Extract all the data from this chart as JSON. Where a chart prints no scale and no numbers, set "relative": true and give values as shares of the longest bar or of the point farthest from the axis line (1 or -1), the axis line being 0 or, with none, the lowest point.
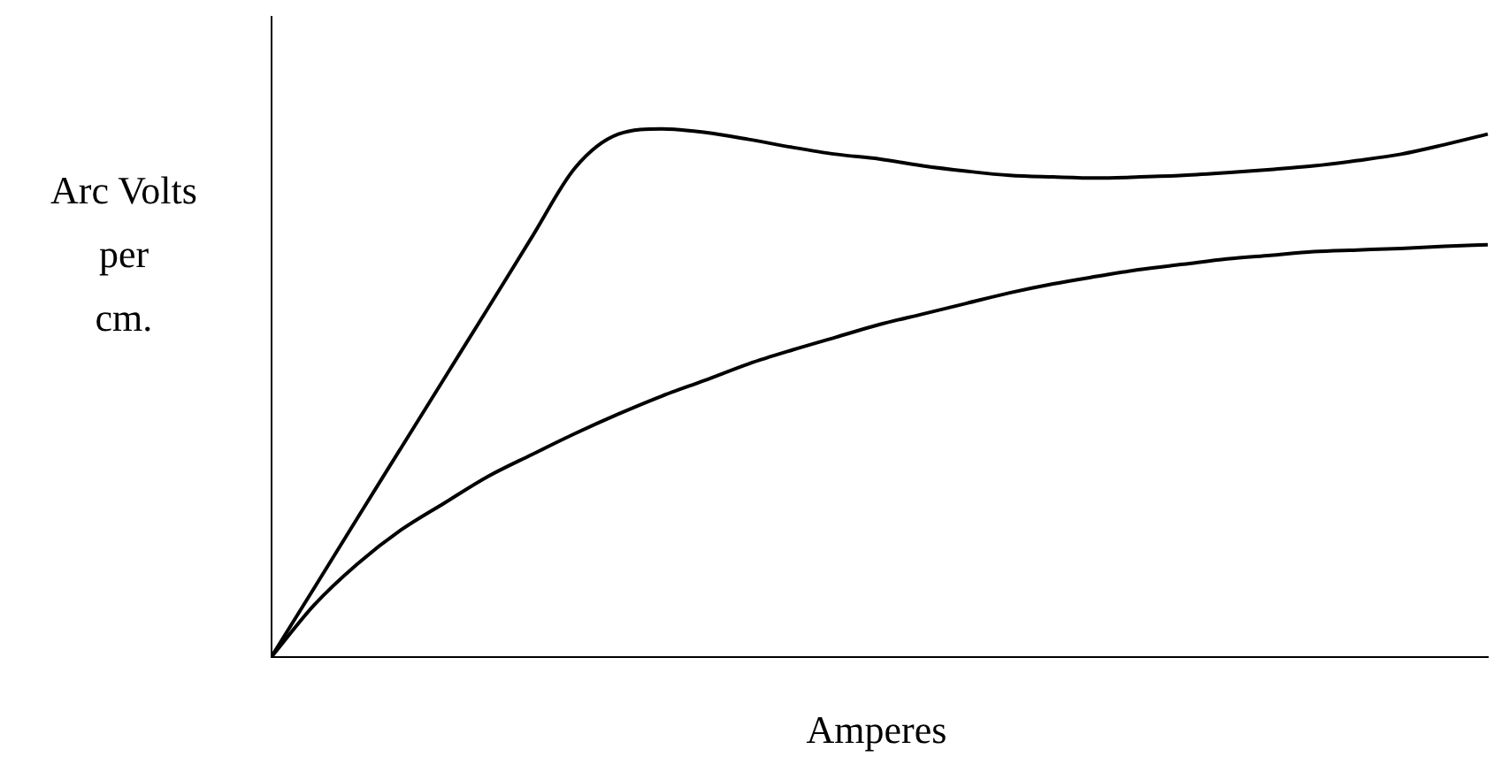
{
  "chart_data": {
    "type": "line",
    "xlabel": "Amperes",
    "ylabel": "Arc Volts\nper\ncm.",
    "relative": true,
    "categories": [
      null,
      null,
      null,
      null,
      null,
      null,
      null,
      null,
      null,
      null,
      null,
      null,
      null,
      null,
      null,
      null,
      null,
      null,
      null,
      null,
      null,
      null,
      null,
      null,
      null,
      null,
      null,
      null,
      null
    ],
    "series": [
      {
        "color": "#000000",
        "values": [
          0,
          0.132,
          0.265,
          0.397,
          0.529,
          0.661,
          0.794,
          0.926,
          0.99,
          1.0,
          0.993,
          0.98,
          0.965,
          0.952,
          0.943,
          0.93,
          0.92,
          0.912,
          0.909,
          0.907,
          0.909,
          0.912,
          0.917,
          0.923,
          0.93,
          0.94,
          0.952,
          0.97,
          0.99
        ]
      },
      {
        "color": "#000000",
        "values": [
          0,
          0.1,
          0.178,
          0.242,
          0.293,
          0.343,
          0.384,
          0.424,
          0.461,
          0.495,
          0.525,
          0.556,
          0.582,
          0.606,
          0.63,
          0.65,
          0.67,
          0.69,
          0.707,
          0.721,
          0.734,
          0.744,
          0.754,
          0.761,
          0.768,
          0.771,
          0.774,
          0.778,
          0.781
        ]
      }
    ]
  }
}
